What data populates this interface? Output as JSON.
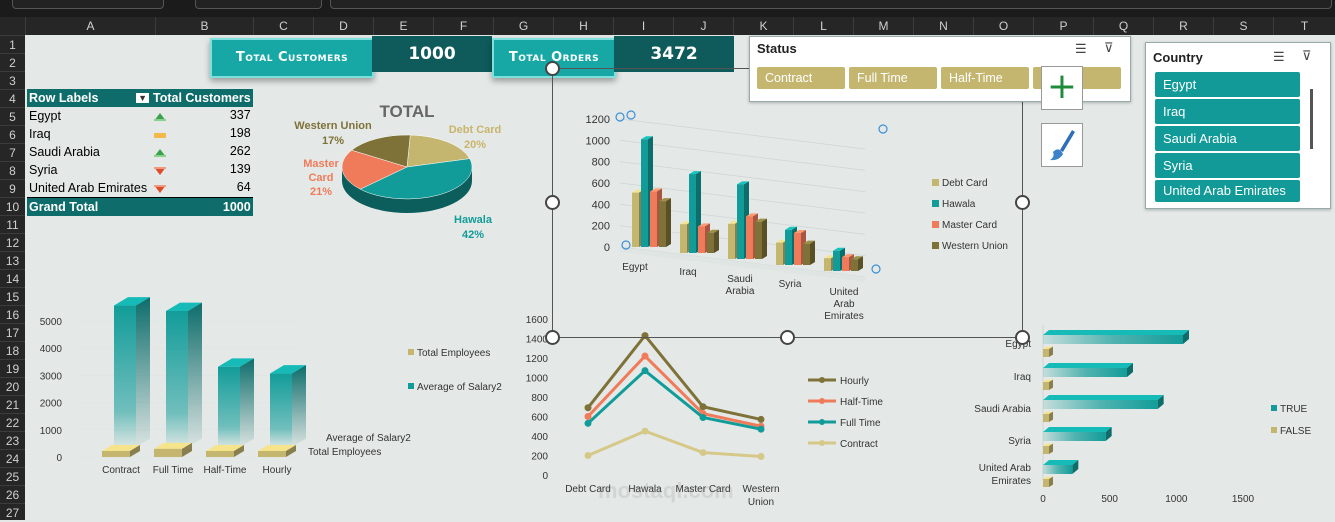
{
  "columns": [
    "A",
    "B",
    "C",
    "D",
    "E",
    "F",
    "G",
    "H",
    "I",
    "J",
    "K",
    "L",
    "M",
    "N",
    "O",
    "P",
    "Q",
    "R",
    "S",
    "T"
  ],
  "rows": [
    "1",
    "2",
    "3",
    "4",
    "5",
    "6",
    "7",
    "8",
    "9",
    "10",
    "11",
    "12",
    "13",
    "14",
    "15",
    "16",
    "17",
    "18",
    "19",
    "20",
    "21",
    "22",
    "23",
    "24",
    "25",
    "26",
    "27"
  ],
  "kpi": {
    "total_customers_label": "Total Customers",
    "total_customers_value": "1000",
    "total_orders_label": "Total Orders",
    "total_orders_value": "3472"
  },
  "pivot": {
    "header_row_labels": "Row Labels",
    "header_total": "Total Customers",
    "rows": [
      {
        "label": "Egypt",
        "value": "337",
        "icon": "up-triangle-green"
      },
      {
        "label": "Iraq",
        "value": "198",
        "icon": "dash-yellow"
      },
      {
        "label": "Saudi Arabia",
        "value": "262",
        "icon": "up-triangle-green"
      },
      {
        "label": "Syria",
        "value": "139",
        "icon": "down-triangle-red"
      },
      {
        "label": "United Arab Emirates",
        "value": "64",
        "icon": "down-triangle-red"
      }
    ],
    "grand_total_label": "Grand Total",
    "grand_total_value": "1000"
  },
  "status_slicer": {
    "title": "Status",
    "items": [
      "Contract",
      "Full Time",
      "Half-Time",
      ""
    ]
  },
  "country_slicer": {
    "title": "Country",
    "items": [
      "Egypt",
      "Iraq",
      "Saudi Arabia",
      "Syria",
      "United Arab Emirates"
    ]
  },
  "colors": {
    "teal": "#129c99",
    "gold": "#c4b66f",
    "salmon": "#f07b5a",
    "olive": "#7f7238",
    "dark_teal": "#0e6c6b"
  },
  "watermark": "mostaql.com",
  "chart_data": [
    {
      "type": "pie",
      "title": "TOTAL",
      "slices": [
        {
          "label": "Debt Card",
          "value": 20,
          "display": "20%"
        },
        {
          "label": "Hawala",
          "value": 42,
          "display": "42%"
        },
        {
          "label": "Master Card",
          "value": 21,
          "display": "21%"
        },
        {
          "label": "Western Union",
          "value": 17,
          "display": "17%"
        }
      ]
    },
    {
      "type": "bar",
      "categories": [
        "Egypt",
        "Iraq",
        "Saudi Arabia",
        "Syria",
        "United Arab Emirates"
      ],
      "ylim": [
        0,
        1200
      ],
      "yticks": [
        "0",
        "200",
        "400",
        "600",
        "800",
        "1000",
        "1200"
      ],
      "series": [
        {
          "name": "Debt Card",
          "values": [
            510,
            270,
            330,
            210,
            120
          ]
        },
        {
          "name": "Hawala",
          "values": [
            1010,
            740,
            700,
            330,
            190
          ]
        },
        {
          "name": "Master Card",
          "values": [
            520,
            250,
            400,
            300,
            130
          ]
        },
        {
          "name": "Western Union",
          "values": [
            430,
            190,
            350,
            200,
            110
          ]
        }
      ]
    },
    {
      "type": "bar",
      "categories": [
        "Contract",
        "Full Time",
        "Half-Time",
        "Hourly"
      ],
      "ylim": [
        0,
        5000
      ],
      "yticks": [
        "0",
        "1000",
        "2000",
        "3000",
        "4000",
        "5000"
      ],
      "depth_labels": [
        "Average of Salary2",
        "Total Employees"
      ],
      "series": [
        {
          "name": "Total Employees",
          "values": [
            200,
            300,
            180,
            150
          ]
        },
        {
          "name": "Average of Salary2",
          "values": [
            5200,
            5000,
            2950,
            2700
          ]
        }
      ]
    },
    {
      "type": "line",
      "categories": [
        "Debt Card",
        "Hawala",
        "Master Card",
        "Western Union"
      ],
      "ylim": [
        0,
        1600
      ],
      "yticks": [
        "0",
        "200",
        "400",
        "600",
        "800",
        "1000",
        "1200",
        "1400",
        "1600"
      ],
      "series": [
        {
          "name": "Hourly",
          "values": [
            690,
            1430,
            700,
            570
          ]
        },
        {
          "name": "Half-Time",
          "values": [
            600,
            1220,
            630,
            500
          ]
        },
        {
          "name": "Full Time",
          "values": [
            530,
            1070,
            590,
            470
          ]
        },
        {
          "name": "Contract",
          "values": [
            200,
            450,
            230,
            190
          ]
        }
      ]
    },
    {
      "type": "bar",
      "orientation": "horizontal",
      "categories": [
        "Egypt",
        "Iraq",
        "Saudi Arabia",
        "Syria",
        "United Arab Emirates"
      ],
      "xlim": [
        0,
        1500
      ],
      "xticks": [
        "0",
        "500",
        "1000",
        "1500"
      ],
      "series": [
        {
          "name": "TRUE",
          "values": [
            1050,
            630,
            860,
            470,
            220
          ]
        },
        {
          "name": "FALSE",
          "values": [
            40,
            35,
            45,
            30,
            25
          ]
        }
      ]
    }
  ]
}
